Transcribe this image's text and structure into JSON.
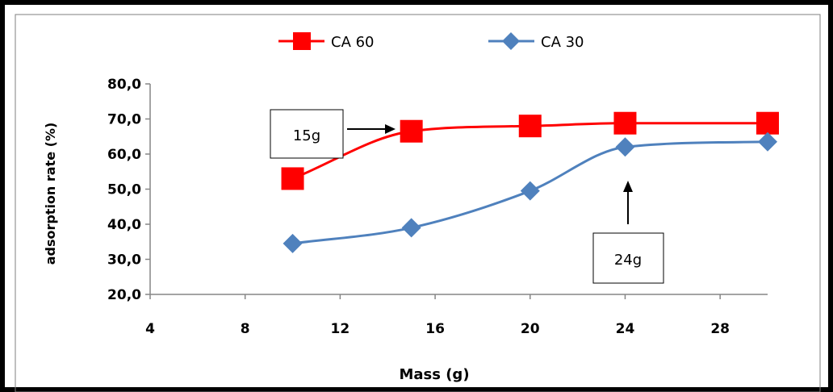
{
  "chart_data": {
    "type": "line",
    "title": "",
    "xlabel": "Mass (g)",
    "ylabel": "adsorption rate (%)",
    "xlim": [
      4,
      30
    ],
    "ylim": [
      20,
      80
    ],
    "x_ticks": [
      4,
      8,
      12,
      16,
      20,
      24,
      28
    ],
    "y_ticks": [
      20,
      30,
      40,
      50,
      60,
      70,
      80
    ],
    "y_tick_labels": [
      "20,0",
      "30,0",
      "40,0",
      "50,0",
      "60,0",
      "70,0",
      "80,0"
    ],
    "grid": false,
    "legend_position": "top",
    "series": [
      {
        "name": "CA 60",
        "color": "#ff0000",
        "marker": "square",
        "x": [
          10,
          15,
          20,
          24,
          30
        ],
        "y": [
          53.0,
          66.5,
          68.0,
          68.8,
          68.8
        ]
      },
      {
        "name": "CA 30",
        "color": "#4f81bd",
        "marker": "diamond",
        "x": [
          10,
          15,
          20,
          24,
          30
        ],
        "y": [
          34.5,
          39.0,
          49.5,
          62.0,
          63.5
        ]
      }
    ],
    "annotations": [
      {
        "text": "15g",
        "target_x": 15,
        "target_y": 66.5,
        "arrow": "right"
      },
      {
        "text": "24g",
        "target_x": 24,
        "target_y": 62.0,
        "arrow": "up"
      }
    ]
  }
}
